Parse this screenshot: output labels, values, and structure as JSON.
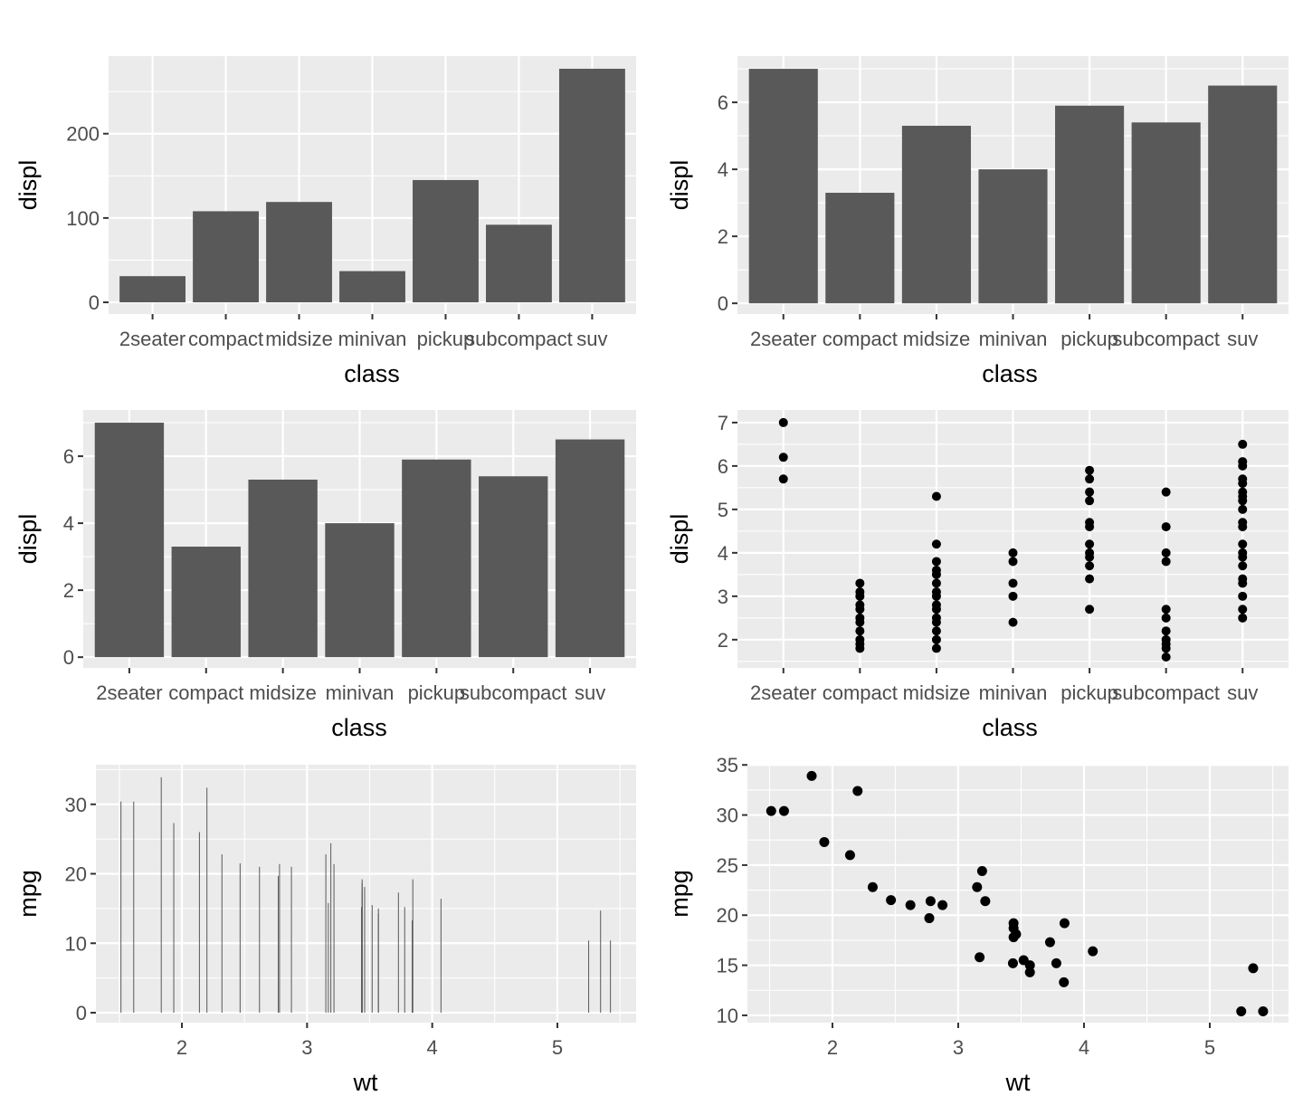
{
  "colors": {
    "panel_bg": "#EBEBEB",
    "grid": "#FFFFFF",
    "bar": "#595959",
    "point": "#000000",
    "tick_text": "#4D4D4D"
  },
  "chart_data": [
    {
      "type": "bar",
      "xlabel": "class",
      "ylabel": "displ",
      "categories": [
        "2seater",
        "compact",
        "midsize",
        "minivan",
        "pickup",
        "subcompact",
        "suv"
      ],
      "values": [
        31,
        108,
        119,
        37,
        145,
        92,
        277
      ],
      "ylim": [
        -13.9,
        292
      ],
      "yticks": [
        0,
        100,
        200
      ],
      "yminor": [
        50,
        150,
        250
      ],
      "grid": true
    },
    {
      "type": "bar",
      "xlabel": "class",
      "ylabel": "displ",
      "categories": [
        "2seater",
        "compact",
        "midsize",
        "minivan",
        "pickup",
        "subcompact",
        "suv"
      ],
      "values": [
        7.0,
        3.3,
        5.3,
        4.0,
        5.9,
        5.4,
        6.5
      ],
      "ylim": [
        -0.32,
        7.38
      ],
      "yticks": [
        0,
        2,
        4,
        6
      ],
      "yminor": [
        1,
        3,
        5,
        7
      ],
      "grid": true
    },
    {
      "type": "bar",
      "xlabel": "class",
      "ylabel": "displ",
      "categories": [
        "2seater",
        "compact",
        "midsize",
        "minivan",
        "pickup",
        "subcompact",
        "suv"
      ],
      "values": [
        7.0,
        3.3,
        5.3,
        4.0,
        5.9,
        5.4,
        6.5
      ],
      "ylim": [
        -0.32,
        7.38
      ],
      "yticks": [
        0,
        2,
        4,
        6
      ],
      "yminor": [
        1,
        3,
        5,
        7
      ],
      "grid": true
    },
    {
      "type": "scatter",
      "xlabel": "class",
      "ylabel": "displ",
      "categories": [
        "2seater",
        "compact",
        "midsize",
        "minivan",
        "pickup",
        "subcompact",
        "suv"
      ],
      "points": {
        "2seater": [
          5.7,
          6.2,
          7.0
        ],
        "compact": [
          1.8,
          1.9,
          2.0,
          2.2,
          2.4,
          2.5,
          2.7,
          2.8,
          3.0,
          3.1,
          3.3
        ],
        "midsize": [
          1.8,
          2.0,
          2.2,
          2.4,
          2.5,
          2.7,
          2.8,
          3.0,
          3.1,
          3.3,
          3.5,
          3.6,
          3.8,
          4.2,
          5.3
        ],
        "minivan": [
          2.4,
          3.0,
          3.3,
          3.8,
          4.0
        ],
        "pickup": [
          2.7,
          3.4,
          3.7,
          3.9,
          4.0,
          4.2,
          4.6,
          4.7,
          5.2,
          5.4,
          5.7,
          5.9
        ],
        "subcompact": [
          1.6,
          1.8,
          1.9,
          2.0,
          2.2,
          2.5,
          2.7,
          3.8,
          4.0,
          4.6,
          5.4
        ],
        "suv": [
          2.5,
          2.7,
          3.0,
          3.3,
          3.4,
          3.7,
          3.9,
          4.0,
          4.2,
          4.6,
          4.7,
          5.0,
          5.2,
          5.3,
          5.4,
          5.6,
          5.7,
          6.0,
          6.1,
          6.5
        ]
      },
      "ylim": [
        1.35,
        7.29
      ],
      "yticks": [
        2,
        3,
        4,
        5,
        6,
        7
      ],
      "yminor": [
        1.5,
        2.5,
        3.5,
        4.5,
        5.5,
        6.5
      ],
      "grid": true
    },
    {
      "type": "bar",
      "xlabel": "wt",
      "ylabel": "mpg",
      "x": [
        2.62,
        2.875,
        2.32,
        3.215,
        3.44,
        3.46,
        3.57,
        3.19,
        3.15,
        3.44,
        3.44,
        4.07,
        3.73,
        3.78,
        5.25,
        5.424,
        5.345,
        2.2,
        1.615,
        1.835,
        2.465,
        3.52,
        3.435,
        3.84,
        3.845,
        1.935,
        2.14,
        1.513,
        3.17,
        2.77,
        3.57,
        2.78
      ],
      "y": [
        21.0,
        21.0,
        22.8,
        21.4,
        18.7,
        18.1,
        14.3,
        24.4,
        22.8,
        19.2,
        17.8,
        16.4,
        17.3,
        15.2,
        10.4,
        10.4,
        14.7,
        32.4,
        30.4,
        33.9,
        21.5,
        15.5,
        15.2,
        13.3,
        19.2,
        27.3,
        26.0,
        30.4,
        15.8,
        19.7,
        15.0,
        21.4
      ],
      "xlim": [
        1.313,
        5.629
      ],
      "xticks": [
        2,
        3,
        4,
        5
      ],
      "xminor": [
        1.5,
        2.5,
        3.5,
        4.5,
        5.5
      ],
      "ylim": [
        -1.43,
        35.7
      ],
      "yticks": [
        0,
        10,
        20,
        30
      ],
      "yminor": [
        5,
        15,
        25,
        35
      ],
      "grid": true
    },
    {
      "type": "scatter",
      "xlabel": "wt",
      "ylabel": "mpg",
      "x": [
        2.62,
        2.875,
        2.32,
        3.215,
        3.44,
        3.46,
        3.57,
        3.19,
        3.15,
        3.44,
        3.44,
        4.07,
        3.73,
        3.78,
        5.25,
        5.424,
        5.345,
        2.2,
        1.615,
        1.835,
        2.465,
        3.52,
        3.435,
        3.84,
        3.845,
        1.935,
        2.14,
        1.513,
        3.17,
        2.77,
        3.57,
        2.78
      ],
      "y": [
        21.0,
        21.0,
        22.8,
        21.4,
        18.7,
        18.1,
        14.3,
        24.4,
        22.8,
        19.2,
        17.8,
        16.4,
        17.3,
        15.2,
        10.4,
        10.4,
        14.7,
        32.4,
        30.4,
        33.9,
        21.5,
        15.5,
        15.2,
        13.3,
        19.2,
        27.3,
        26.0,
        30.4,
        15.8,
        19.7,
        15.0,
        21.4
      ],
      "xlim": [
        1.324,
        5.626
      ],
      "xticks": [
        2,
        3,
        4,
        5
      ],
      "xminor": [
        1.5,
        2.5,
        3.5,
        4.5,
        5.5
      ],
      "ylim": [
        9.27,
        35.02
      ],
      "yticks": [
        10,
        15,
        20,
        25,
        30,
        35
      ],
      "yminor": [
        12.5,
        17.5,
        22.5,
        27.5,
        32.5
      ],
      "grid": true
    }
  ]
}
